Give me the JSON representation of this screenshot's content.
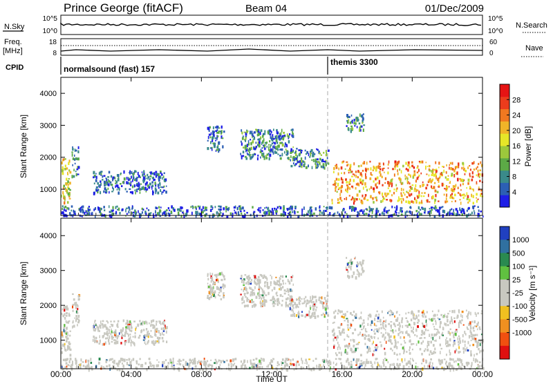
{
  "header": {
    "station": "Prince George (fitACF)",
    "beam": "Beam 04",
    "date": "01/Dec/2009"
  },
  "status_panels": {
    "nsky": {
      "label": "N.Sky",
      "ticks": [
        "10^5",
        "10^0"
      ]
    },
    "nsearch": {
      "label": "N.Search",
      "ticks": [
        "10^5",
        "10^0"
      ]
    },
    "freq": {
      "label_line1": "Freq.",
      "label_line2": "[MHz]",
      "ticks": [
        "18",
        "8"
      ]
    },
    "nave": {
      "label": "Nave",
      "ticks": [
        "60",
        "0"
      ]
    },
    "cpid": {
      "label": "CPID",
      "segments": [
        {
          "text": "normalsound (fast) 157",
          "start": "00:00"
        },
        {
          "text": "themis 3300",
          "start": "15:20"
        }
      ]
    }
  },
  "chart_data": [
    {
      "type": "heatmap",
      "name": "power",
      "ylabel": "Slant Range [km]",
      "ylim": [
        180,
        4500
      ],
      "yticks": [
        "1000",
        "2000",
        "3000",
        "4000"
      ],
      "xlim_hours": [
        0,
        24
      ],
      "colorbar": {
        "label": "Power [dB]",
        "ticks": [
          "4",
          "8",
          "12",
          "16",
          "20",
          "24",
          "28"
        ],
        "range": [
          0,
          32
        ],
        "colors": [
          "#1e1ee6",
          "#2c5fb4",
          "#3a8a8a",
          "#5caa46",
          "#9cc83c",
          "#e6e628",
          "#f0b428",
          "#f07820",
          "#ec3c1c",
          "#e61414"
        ]
      },
      "features": [
        {
          "time": [
            0.0,
            0.5
          ],
          "range": [
            600,
            2000
          ],
          "db": 18
        },
        {
          "time": [
            0.6,
            1.0
          ],
          "range": [
            1400,
            2400
          ],
          "db": 6
        },
        {
          "time": [
            1.8,
            6.0
          ],
          "range": [
            900,
            1600
          ],
          "db": 5
        },
        {
          "time": [
            8.3,
            9.3
          ],
          "range": [
            2200,
            3000
          ],
          "db": 6
        },
        {
          "time": [
            10.2,
            13.2
          ],
          "range": [
            2000,
            2900
          ],
          "db": 7
        },
        {
          "time": [
            13.0,
            15.2
          ],
          "range": [
            1700,
            2300
          ],
          "db": 8
        },
        {
          "time": [
            15.4,
            24.0
          ],
          "range": [
            600,
            1900
          ],
          "db": 22
        },
        {
          "time": [
            16.2,
            17.2
          ],
          "range": [
            2800,
            3400
          ],
          "db": 8
        },
        {
          "time": [
            0.0,
            24.0
          ],
          "range": [
            180,
            500
          ],
          "db": 5
        }
      ]
    },
    {
      "type": "heatmap",
      "name": "velocity",
      "ylabel": "Slant Range [km]",
      "ylim": [
        180,
        4500
      ],
      "yticks": [
        "1000",
        "2000",
        "3000",
        "4000"
      ],
      "xlim_hours": [
        0,
        24
      ],
      "xticks": [
        "00:00",
        "04:00",
        "08:00",
        "12:00",
        "16:00",
        "20:00",
        "00:00"
      ],
      "xlabel": "Time UT",
      "colorbar": {
        "label": "Velocity [m s⁻¹]",
        "ticks": [
          "1000",
          "500",
          "100",
          "25",
          "-25",
          "-100",
          "-500",
          "-1000"
        ],
        "colors": [
          "#2040c0",
          "#3070a0",
          "#2a8a50",
          "#60c040",
          "#c8c8c0",
          "#c8c8c0",
          "#f0c020",
          "#f09020",
          "#f05010",
          "#e01010"
        ]
      },
      "ground_scatter_color": "#c8c8c0"
    }
  ]
}
